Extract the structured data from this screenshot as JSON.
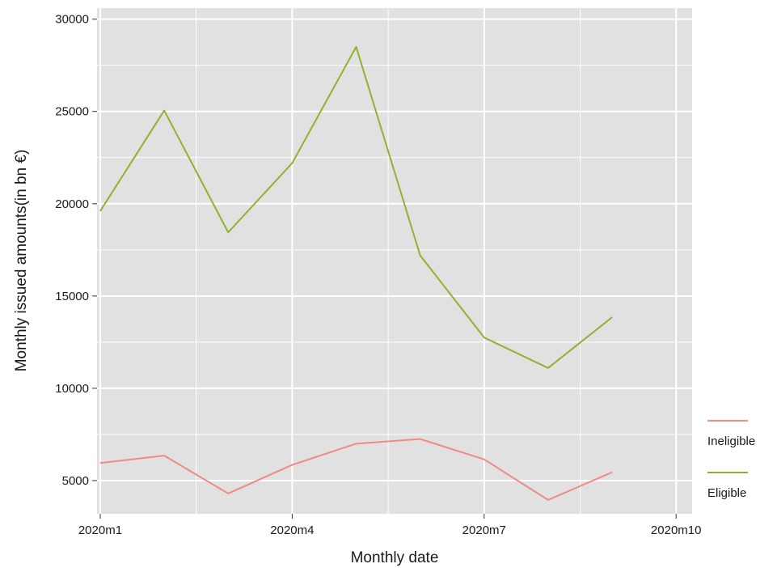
{
  "chart_data": {
    "type": "line",
    "title": "",
    "xlabel": "Monthly date",
    "ylabel": "Monthly issued amounts(in bn €)",
    "x": [
      1,
      2,
      3,
      4,
      5,
      6,
      7,
      8,
      9
    ],
    "x_ticks": [
      {
        "value": 1,
        "label": "2020m1"
      },
      {
        "value": 4,
        "label": "2020m4"
      },
      {
        "value": 7,
        "label": "2020m7"
      },
      {
        "value": 10,
        "label": "2020m10"
      }
    ],
    "y_ticks": [
      5000,
      10000,
      15000,
      20000,
      25000,
      30000
    ],
    "xlim": [
      0.95,
      10.25
    ],
    "ylim": [
      3200,
      30600
    ],
    "grid": true,
    "legend_position": "right",
    "series": [
      {
        "name": "Ineligible",
        "color": "#f08a84",
        "values": [
          5950,
          6350,
          4300,
          5850,
          7000,
          7250,
          6150,
          3950,
          5450
        ]
      },
      {
        "name": "Eligible",
        "color": "#8fb32f",
        "values": [
          19600,
          25050,
          18450,
          22200,
          28500,
          17200,
          12750,
          11100,
          13850
        ]
      }
    ]
  }
}
